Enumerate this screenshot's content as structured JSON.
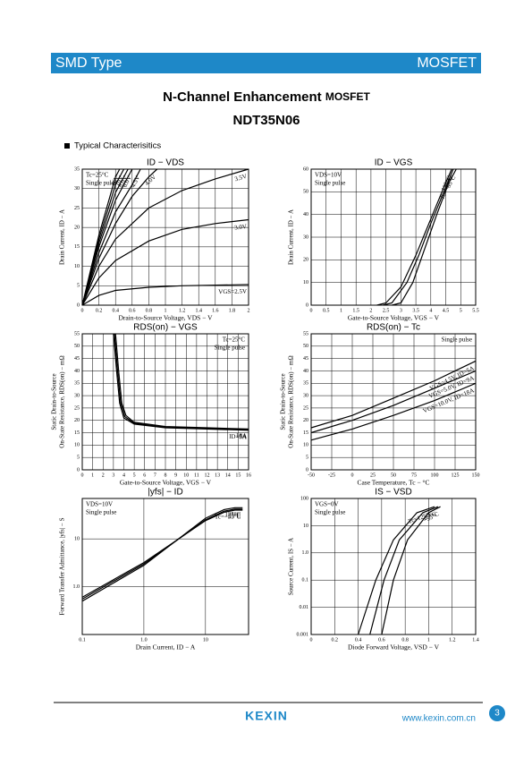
{
  "header": {
    "left": "SMD Type",
    "right": "MOSFET"
  },
  "title": {
    "main": "N-Channel Enhancement",
    "suffix": "MOSFET",
    "part": "NDT35N06"
  },
  "section": "Typical  Characterisitics",
  "charts": [
    {
      "type": "line",
      "title": "ID − VDS",
      "xlabel": "Drain-to-Source Voltage, VDS − V",
      "ylabel": "Drain Current, ID − A",
      "xlim": [
        0,
        2.0
      ],
      "xticks": [
        0,
        0.2,
        0.4,
        0.6,
        0.8,
        1.0,
        1.2,
        1.4,
        1.6,
        1.8,
        2.0
      ],
      "ylim": [
        0,
        35
      ],
      "yticks": [
        0,
        5,
        10,
        15,
        20,
        25,
        30,
        35
      ],
      "grid": true,
      "annotations": [
        "Tc=25°C",
        "Single pulse"
      ],
      "annotation_corner": "top-left",
      "series": [
        {
          "name": "VGS=2.5V",
          "color": "#000",
          "x": [
            0,
            0.2,
            0.4,
            0.8,
            1.2,
            2.0
          ],
          "values": [
            0,
            2.5,
            3.8,
            4.6,
            5,
            5.3
          ]
        },
        {
          "name": "3.0V",
          "color": "#000",
          "x": [
            0,
            0.2,
            0.4,
            0.8,
            1.2,
            1.6,
            2.0
          ],
          "values": [
            0,
            7,
            11.5,
            16.5,
            19.5,
            21,
            22
          ]
        },
        {
          "name": "3.5V",
          "color": "#000",
          "x": [
            0,
            0.2,
            0.4,
            0.8,
            1.2,
            1.6,
            2.0
          ],
          "values": [
            0,
            10,
            17,
            25,
            29.5,
            32.5,
            35
          ]
        },
        {
          "name": "4.0V",
          "color": "#000",
          "x": [
            0,
            0.2,
            0.4,
            0.6,
            0.8,
            0.9
          ],
          "values": [
            0,
            12,
            21,
            28,
            33,
            35
          ]
        },
        {
          "name": "4.5V",
          "color": "#000",
          "x": [
            0,
            0.2,
            0.4,
            0.6,
            0.7
          ],
          "values": [
            0,
            13.5,
            24,
            31,
            35
          ]
        },
        {
          "name": "6.0V",
          "color": "#000",
          "x": [
            0,
            0.2,
            0.4,
            0.6
          ],
          "values": [
            0,
            15,
            27,
            35
          ]
        },
        {
          "name": "8.0V",
          "color": "#000",
          "x": [
            0,
            0.2,
            0.4,
            0.55
          ],
          "values": [
            0,
            16,
            29,
            35
          ]
        },
        {
          "name": "10V",
          "color": "#000",
          "x": [
            0,
            0.2,
            0.4,
            0.5
          ],
          "values": [
            0,
            17,
            31,
            35
          ]
        },
        {
          "name": "16V",
          "color": "#000",
          "x": [
            0,
            0.2,
            0.4,
            0.45
          ],
          "values": [
            0,
            18,
            33,
            35
          ]
        }
      ]
    },
    {
      "type": "line",
      "title": "ID − VGS",
      "xlabel": "Gate-to-Source Voltage, VGS − V",
      "ylabel": "Drain Current, ID − A",
      "xlim": [
        0,
        5.5
      ],
      "xticks": [
        0,
        0.5,
        1.0,
        1.5,
        2.0,
        2.5,
        3.0,
        3.5,
        4.0,
        4.5,
        5.0,
        5.5
      ],
      "ylim": [
        0,
        60
      ],
      "yticks": [
        0,
        10,
        20,
        30,
        40,
        50,
        60
      ],
      "grid": true,
      "annotations": [
        "VDS=10V",
        "Single pulse"
      ],
      "annotation_corner": "top-left",
      "series": [
        {
          "name": "125°C",
          "color": "#000",
          "x": [
            2.2,
            2.5,
            3.0,
            3.5,
            4.0,
            4.5,
            4.7
          ],
          "values": [
            0,
            1,
            8,
            22,
            38,
            54,
            60
          ]
        },
        {
          "name": "25°C",
          "color": "#000",
          "x": [
            2.4,
            2.7,
            3.2,
            3.6,
            4.0,
            4.5,
            4.75
          ],
          "values": [
            0,
            1,
            10,
            22,
            36,
            52,
            60
          ]
        },
        {
          "name": "Tc=−55°C",
          "color": "#000",
          "x": [
            2.7,
            3.0,
            3.4,
            3.8,
            4.2,
            4.6,
            4.85
          ],
          "values": [
            0,
            1,
            10,
            25,
            40,
            54,
            60
          ]
        }
      ]
    },
    {
      "type": "line",
      "title": "RDS(on) − VGS",
      "xlabel": "Gate-to-Source Voltage, VGS − V",
      "ylabel": [
        "Static Drain-to-Source",
        "On-State Resistance, RDS(on) − mΩ"
      ],
      "xlim": [
        0,
        16
      ],
      "xticks": [
        0,
        1,
        2,
        3,
        4,
        5,
        6,
        7,
        8,
        9,
        10,
        11,
        12,
        13,
        14,
        15,
        16
      ],
      "ylim": [
        0,
        55
      ],
      "yticks": [
        0,
        5,
        10,
        15,
        20,
        25,
        30,
        35,
        40,
        45,
        50,
        55
      ],
      "grid": true,
      "annotations": [
        "Tc=25°C",
        "Single pulse"
      ],
      "annotation_corner": "top-right",
      "series": [
        {
          "name": "ID=5A",
          "color": "#000",
          "x": [
            3.0,
            3.3,
            3.6,
            4.0,
            5,
            8,
            12,
            16
          ],
          "values": [
            55,
            40,
            27,
            21,
            18.5,
            17,
            16.5,
            16
          ]
        },
        {
          "name": "9A",
          "color": "#000",
          "x": [
            3.1,
            3.4,
            3.7,
            4.1,
            5,
            8,
            12,
            16
          ],
          "values": [
            55,
            40,
            27,
            21.5,
            18.8,
            17.2,
            16.7,
            16.2
          ]
        },
        {
          "name": "18A",
          "color": "#000",
          "x": [
            3.2,
            3.5,
            3.8,
            4.2,
            5,
            8,
            12,
            16
          ],
          "values": [
            55,
            40,
            27,
            22,
            19.2,
            17.5,
            17,
            16.5
          ]
        }
      ]
    },
    {
      "type": "line",
      "title": "RDS(on) − Tc",
      "xlabel": "Case Temperature, Tc − °C",
      "ylabel": [
        "Static Drain-to-Source",
        "On-State Resistance, RDS(on) − mΩ"
      ],
      "xlim": [
        -50,
        150
      ],
      "xticks": [
        -50,
        -25,
        0,
        25,
        50,
        75,
        100,
        125,
        150
      ],
      "ylim": [
        0,
        55
      ],
      "yticks": [
        0,
        5,
        10,
        15,
        20,
        25,
        30,
        35,
        40,
        45,
        50,
        55
      ],
      "grid": true,
      "annotations": [
        "Single pulse"
      ],
      "annotation_corner": "top-right",
      "series": [
        {
          "name": "VGS=4.5V, ID=5A",
          "color": "#000",
          "x": [
            -50,
            0,
            50,
            100,
            150
          ],
          "values": [
            17,
            22,
            29,
            36,
            44
          ]
        },
        {
          "name": "VGS=5.0V, ID=9A",
          "color": "#000",
          "x": [
            -50,
            0,
            50,
            100,
            150
          ],
          "values": [
            15,
            20,
            26,
            33,
            40
          ]
        },
        {
          "name": "VGS=10.0V, ID=18A",
          "color": "#000",
          "x": [
            -50,
            0,
            50,
            100,
            150
          ],
          "values": [
            12,
            16.5,
            22,
            28,
            35
          ]
        }
      ]
    },
    {
      "type": "line",
      "title": "|yfs| − ID",
      "xlabel": "Drain Current, ID − A",
      "ylabel": "Forward Transfer Admittance, |yfs| − S",
      "xlog": true,
      "ylog": true,
      "xlim": [
        0.1,
        50
      ],
      "xticks": [
        0.1,
        {
          "value": 1,
          "label": "1.0"
        },
        10
      ],
      "ylim": [
        0.1,
        70
      ],
      "yticks": [
        {
          "value": 1,
          "label": "1.0"
        },
        10
      ],
      "grid": true,
      "annotations": [
        "VDS=10V",
        "Single pulse"
      ],
      "annotation_corner": "top-left",
      "series": [
        {
          "name": "Tc=−55°C",
          "color": "#000",
          "x": [
            0.1,
            1,
            10,
            20,
            30,
            40
          ],
          "values": [
            0.6,
            3.2,
            24,
            36,
            40,
            40
          ]
        },
        {
          "name": "25°C",
          "color": "#000",
          "x": [
            0.1,
            1,
            10,
            20,
            30,
            40
          ],
          "values": [
            0.55,
            3,
            25,
            38,
            42,
            42
          ]
        },
        {
          "name": "125°C",
          "color": "#000",
          "x": [
            0.1,
            1,
            10,
            20,
            30,
            40
          ],
          "values": [
            0.5,
            2.8,
            27,
            41,
            45,
            45
          ]
        }
      ]
    },
    {
      "type": "line",
      "title": "IS − VSD",
      "xlabel": "Diode Forward Voltage, VSD − V",
      "ylabel": "Source Current, IS − A",
      "ylog": true,
      "xlim": [
        0,
        1.4
      ],
      "xticks": [
        0,
        0.2,
        0.4,
        0.6,
        0.8,
        1.0,
        1.2,
        1.4
      ],
      "ylim": [
        0.001,
        100
      ],
      "yticks": [
        0.001,
        0.01,
        0.1,
        {
          "value": 1,
          "label": "1.0"
        },
        10,
        100
      ],
      "grid": true,
      "annotations": [
        "VGS=0V",
        "Single pulse"
      ],
      "annotation_corner": "top-left",
      "series": [
        {
          "name": "Tc=125°C",
          "color": "#000",
          "x": [
            0.4,
            0.55,
            0.7,
            0.9,
            1.05
          ],
          "values": [
            0.001,
            0.1,
            3,
            30,
            50
          ]
        },
        {
          "name": "25°C",
          "color": "#000",
          "x": [
            0.5,
            0.62,
            0.75,
            0.95,
            1.08
          ],
          "values": [
            0.001,
            0.1,
            3,
            30,
            50
          ]
        },
        {
          "name": "−55°C",
          "color": "#000",
          "x": [
            0.6,
            0.7,
            0.82,
            1.0,
            1.1
          ],
          "values": [
            0.001,
            0.1,
            3,
            30,
            50
          ]
        }
      ]
    }
  ],
  "footer": {
    "brand": "KEXIN",
    "url": "www.kexin.com.cn",
    "page": 3
  }
}
